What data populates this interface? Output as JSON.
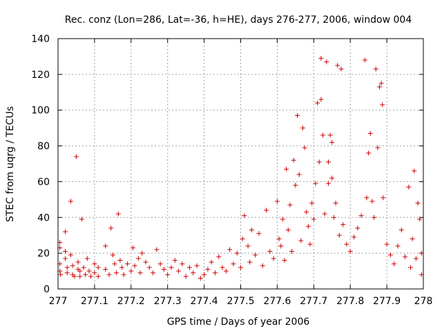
{
  "chart_data": {
    "type": "scatter",
    "title": "Rec. conz (Lon=286, Lat=-36, h=HE), days 276-277, 2006, window 004",
    "xlabel": "GPS time / Days of year 2006",
    "ylabel": "STEC from uqrg / TECUs",
    "xlim": [
      277,
      278
    ],
    "ylim": [
      0,
      140
    ],
    "xticks": [
      277,
      277.1,
      277.2,
      277.3,
      277.4,
      277.5,
      277.6,
      277.7,
      277.8,
      277.9,
      278
    ],
    "xtick_labels": [
      "277",
      "277.1",
      "277.2",
      "277.3",
      "277.4",
      "277.5",
      "277.6",
      "277.7",
      "277.8",
      "277.9",
      "278"
    ],
    "yticks": [
      0,
      20,
      40,
      60,
      80,
      100,
      120,
      140
    ],
    "ytick_labels": [
      "0",
      "20",
      "40",
      "60",
      "80",
      "100",
      "120",
      "140"
    ],
    "grid": true,
    "marker": "+",
    "color": "#cc0000",
    "points": [
      [
        277.005,
        26
      ],
      [
        277.005,
        23
      ],
      [
        277.005,
        14
      ],
      [
        277.005,
        10
      ],
      [
        277.007,
        8
      ],
      [
        277.02,
        32
      ],
      [
        277.02,
        21
      ],
      [
        277.02,
        17
      ],
      [
        277.025,
        12
      ],
      [
        277.025,
        9
      ],
      [
        277.035,
        49
      ],
      [
        277.035,
        19
      ],
      [
        277.04,
        13
      ],
      [
        277.04,
        8
      ],
      [
        277.045,
        7
      ],
      [
        277.05,
        74
      ],
      [
        277.055,
        15
      ],
      [
        277.055,
        11
      ],
      [
        277.06,
        10
      ],
      [
        277.06,
        7
      ],
      [
        277.065,
        39
      ],
      [
        277.07,
        12
      ],
      [
        277.075,
        8
      ],
      [
        277.08,
        17
      ],
      [
        277.085,
        10
      ],
      [
        277.09,
        7
      ],
      [
        277.1,
        14
      ],
      [
        277.1,
        9
      ],
      [
        277.11,
        12
      ],
      [
        277.11,
        7
      ],
      [
        277.13,
        24
      ],
      [
        277.13,
        11
      ],
      [
        277.14,
        8
      ],
      [
        277.145,
        34
      ],
      [
        277.15,
        19
      ],
      [
        277.155,
        14
      ],
      [
        277.16,
        9
      ],
      [
        277.165,
        42
      ],
      [
        277.17,
        16
      ],
      [
        277.175,
        12
      ],
      [
        277.18,
        8
      ],
      [
        277.19,
        14
      ],
      [
        277.2,
        10
      ],
      [
        277.205,
        23
      ],
      [
        277.21,
        13
      ],
      [
        277.22,
        17
      ],
      [
        277.225,
        9
      ],
      [
        277.23,
        20
      ],
      [
        277.24,
        15
      ],
      [
        277.25,
        12
      ],
      [
        277.26,
        9
      ],
      [
        277.27,
        22
      ],
      [
        277.28,
        14
      ],
      [
        277.29,
        11
      ],
      [
        277.3,
        8
      ],
      [
        277.31,
        12
      ],
      [
        277.32,
        16
      ],
      [
        277.33,
        10
      ],
      [
        277.34,
        14
      ],
      [
        277.35,
        7
      ],
      [
        277.36,
        12
      ],
      [
        277.37,
        9
      ],
      [
        277.38,
        13
      ],
      [
        277.39,
        6
      ],
      [
        277.4,
        8
      ],
      [
        277.41,
        11
      ],
      [
        277.42,
        15
      ],
      [
        277.43,
        9
      ],
      [
        277.44,
        18
      ],
      [
        277.45,
        12
      ],
      [
        277.46,
        10
      ],
      [
        277.47,
        22
      ],
      [
        277.48,
        14
      ],
      [
        277.49,
        20
      ],
      [
        277.5,
        12
      ],
      [
        277.505,
        28
      ],
      [
        277.51,
        41
      ],
      [
        277.52,
        24
      ],
      [
        277.525,
        15
      ],
      [
        277.53,
        33
      ],
      [
        277.54,
        19
      ],
      [
        277.55,
        31
      ],
      [
        277.56,
        13
      ],
      [
        277.57,
        44
      ],
      [
        277.58,
        21
      ],
      [
        277.59,
        17
      ],
      [
        277.6,
        49
      ],
      [
        277.605,
        28
      ],
      [
        277.61,
        24
      ],
      [
        277.615,
        39
      ],
      [
        277.62,
        16
      ],
      [
        277.625,
        67
      ],
      [
        277.63,
        33
      ],
      [
        277.635,
        47
      ],
      [
        277.64,
        21
      ],
      [
        277.645,
        72
      ],
      [
        277.65,
        58
      ],
      [
        277.655,
        97
      ],
      [
        277.66,
        64
      ],
      [
        277.665,
        27
      ],
      [
        277.67,
        90
      ],
      [
        277.675,
        79
      ],
      [
        277.68,
        43
      ],
      [
        277.685,
        35
      ],
      [
        277.69,
        25
      ],
      [
        277.695,
        48
      ],
      [
        277.7,
        39
      ],
      [
        277.705,
        59
      ],
      [
        277.71,
        104
      ],
      [
        277.715,
        71
      ],
      [
        277.72,
        129
      ],
      [
        277.72,
        106
      ],
      [
        277.725,
        86
      ],
      [
        277.73,
        42
      ],
      [
        277.735,
        127
      ],
      [
        277.74,
        71
      ],
      [
        277.74,
        59
      ],
      [
        277.745,
        86
      ],
      [
        277.75,
        82
      ],
      [
        277.75,
        62
      ],
      [
        277.755,
        40
      ],
      [
        277.76,
        48
      ],
      [
        277.765,
        125
      ],
      [
        277.77,
        30
      ],
      [
        277.775,
        123
      ],
      [
        277.78,
        36
      ],
      [
        277.79,
        25
      ],
      [
        277.8,
        21
      ],
      [
        277.81,
        29
      ],
      [
        277.82,
        34
      ],
      [
        277.83,
        41
      ],
      [
        277.84,
        128
      ],
      [
        277.845,
        51
      ],
      [
        277.85,
        76
      ],
      [
        277.855,
        87
      ],
      [
        277.86,
        49
      ],
      [
        277.865,
        40
      ],
      [
        277.87,
        123
      ],
      [
        277.875,
        79
      ],
      [
        277.88,
        113
      ],
      [
        277.885,
        115
      ],
      [
        277.888,
        103
      ],
      [
        277.89,
        51
      ],
      [
        277.9,
        25
      ],
      [
        277.91,
        19
      ],
      [
        277.92,
        14
      ],
      [
        277.93,
        24
      ],
      [
        277.94,
        33
      ],
      [
        277.95,
        18
      ],
      [
        277.96,
        57
      ],
      [
        277.965,
        12
      ],
      [
        277.97,
        28
      ],
      [
        277.975,
        66
      ],
      [
        277.98,
        17
      ],
      [
        277.985,
        48
      ],
      [
        277.99,
        39
      ],
      [
        277.995,
        20
      ],
      [
        277.995,
        8
      ]
    ]
  }
}
